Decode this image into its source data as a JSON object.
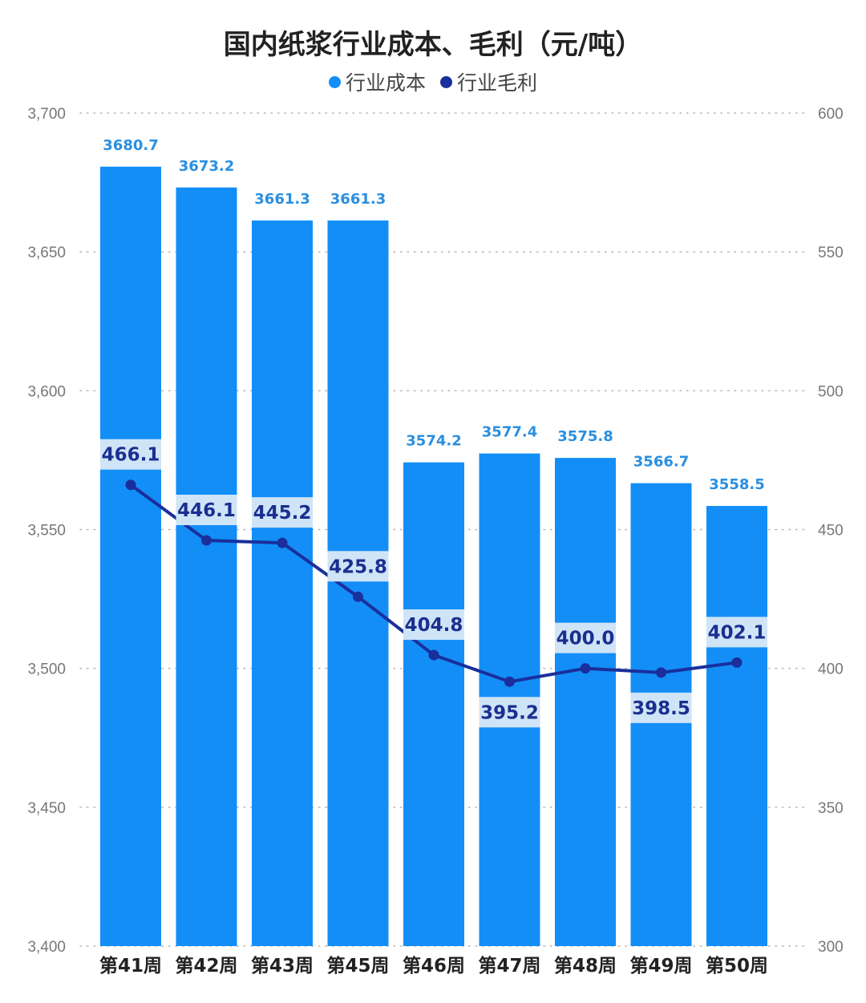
{
  "chart_data": {
    "type": "bar+line",
    "title": "国内纸浆行业成本、毛利（元/吨）",
    "categories": [
      "第41周",
      "第42周",
      "第43周",
      "第45周",
      "第46周",
      "第47周",
      "第48周",
      "第49周",
      "第50周"
    ],
    "series": [
      {
        "name": "行业成本",
        "type": "bar",
        "axis": "left",
        "color": "#138ef7",
        "values": [
          3680.7,
          3673.2,
          3661.3,
          3661.3,
          3574.2,
          3577.4,
          3575.8,
          3566.7,
          3558.5
        ],
        "labels": [
          "3680.7",
          "3673.2",
          "3661.3",
          "3661.3",
          "3574.2",
          "3577.4",
          "3575.8",
          "3566.7",
          "3558.5"
        ]
      },
      {
        "name": "行业毛利",
        "type": "line",
        "axis": "right",
        "color": "#1a2f9c",
        "values": [
          466.1,
          446.1,
          445.2,
          425.8,
          404.8,
          395.2,
          400.0,
          398.5,
          402.1
        ],
        "labels": [
          "466.1",
          "446.1",
          "445.2",
          "425.8",
          "404.8",
          "395.2",
          "400.0",
          "398.5",
          "402.1"
        ]
      }
    ],
    "left_axis": {
      "min": 3400,
      "max": 3700,
      "ticks": [
        "3,400",
        "3,450",
        "3,500",
        "3,550",
        "3,600",
        "3,650",
        "3,700"
      ]
    },
    "right_axis": {
      "min": 300,
      "max": 600,
      "ticks": [
        "300",
        "350",
        "400",
        "450",
        "500",
        "550",
        "600"
      ]
    },
    "grid": "dotted horizontal",
    "legend_position": "top-center"
  }
}
